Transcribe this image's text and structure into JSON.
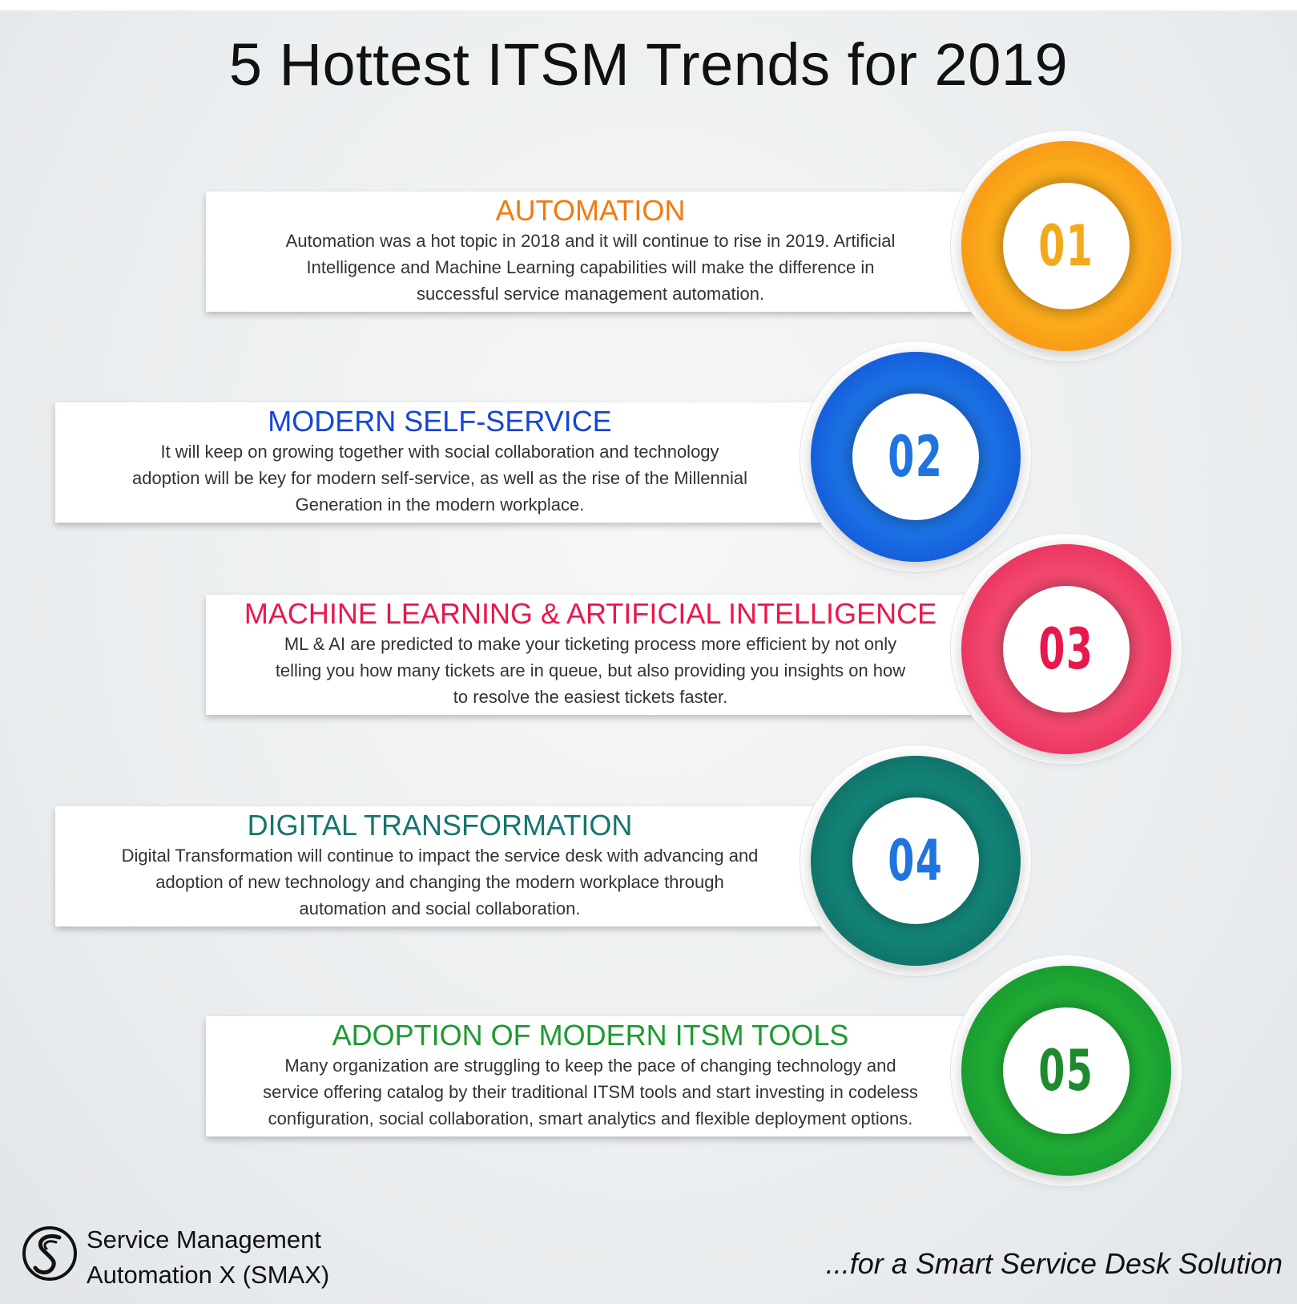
{
  "title": "5 Hottest ITSM Trends for 2019",
  "colors": {
    "automation": "#f07a12",
    "self_service": "#1446d6",
    "ml_ai": "#e8184d",
    "digital": "#14766e",
    "adoption": "#1e9a30"
  },
  "trends": [
    {
      "number": "01",
      "heading": "AUTOMATION",
      "lines": [
        "Automation was a hot topic in 2018 and it will continue to rise in 2019. Artificial",
        "Intelligence and Machine Learning capabilities will make the difference in",
        "successful service management automation."
      ]
    },
    {
      "number": "02",
      "heading": "MODERN SELF-SERVICE",
      "lines": [
        "It will keep on growing together with social collaboration and technology",
        "adoption will be key for modern self-service, as well as the rise of the Millennial",
        "Generation in the modern workplace."
      ]
    },
    {
      "number": "03",
      "heading": "MACHINE LEARNING & ARTIFICIAL INTELLIGENCE",
      "lines": [
        "ML & AI are predicted to make your ticketing process more efficient by not only",
        "telling you how many tickets are in queue, but also providing you insights on how",
        "to resolve the easiest tickets faster."
      ]
    },
    {
      "number": "04",
      "heading": "DIGITAL TRANSFORMATION",
      "lines": [
        "Digital Transformation will continue to impact the service desk with advancing and",
        "adoption of new technology and changing the modern workplace through",
        "automation and social collaboration."
      ]
    },
    {
      "number": "05",
      "heading": "ADOPTION OF MODERN ITSM TOOLS",
      "lines": [
        "Many organization are struggling to keep the pace of changing technology and",
        "service offering catalog by their traditional ITSM tools and start investing in  codeless",
        "configuration, social collaboration, smart analytics and flexible deployment options."
      ]
    }
  ],
  "footer": {
    "brand_line1": "Service Management",
    "brand_line2": "Automation X (SMAX)",
    "tagline": "...for a Smart Service Desk Solution"
  }
}
